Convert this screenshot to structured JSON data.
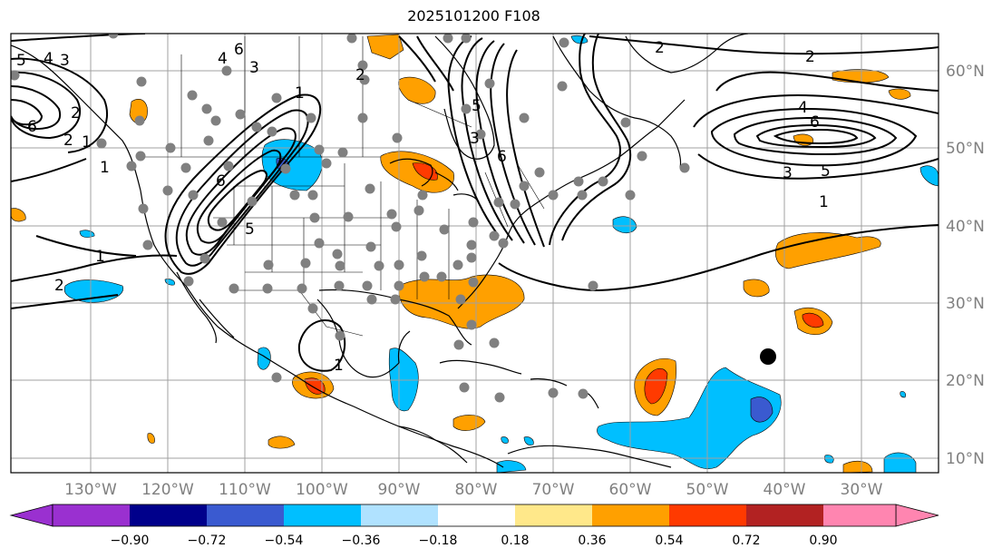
{
  "title": "2025101200 F108",
  "lon_labels": [
    "130°W",
    "120°W",
    "110°W",
    "100°W",
    "90°W",
    "80°W",
    "70°W",
    "60°W",
    "50°W",
    "40°W",
    "30°W"
  ],
  "lat_labels": [
    "60°N",
    "50°N",
    "40°N",
    "30°N",
    "20°N",
    "10°N"
  ],
  "colorbar": {
    "ticks": [
      "−0.90",
      "−0.72",
      "−0.54",
      "−0.36",
      "−0.18",
      "0.18",
      "0.36",
      "0.54",
      "0.72",
      "0.90"
    ],
    "colors": [
      "#9a30d0",
      "#00008b",
      "#3a5ad0",
      "#00bfff",
      "#b0e2ff",
      "#ffffff",
      "#ffe88a",
      "#ffa000",
      "#ff3a00",
      "#b22222",
      "#ff85b0"
    ]
  },
  "contour_labels": [
    "2",
    "2",
    "4",
    "6",
    "3",
    "5",
    "1",
    "6",
    "5",
    "3",
    "2",
    "1",
    "6",
    "4",
    "3",
    "5",
    "6",
    "1",
    "2",
    "1",
    "2",
    "1",
    "6",
    "5",
    "4",
    "3",
    "2",
    "1"
  ],
  "fill_colors": {
    "light_orange": "#ffa000",
    "red": "#ff3a00",
    "blue": "#00bfff",
    "dark_blue": "#3a5ad0"
  }
}
